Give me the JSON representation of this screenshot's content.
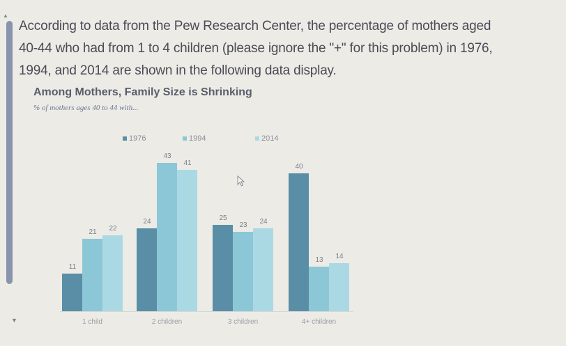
{
  "question": {
    "line1": "According to data from the Pew Research Center, the percentage of mothers aged",
    "line2": "40-44 who had from 1 to 4 children (please ignore the \"+\" for this problem) in 1976,",
    "line3": "1994, and 2014 are shown in the following data display."
  },
  "colors": {
    "1976": "#5a8ea6",
    "1994": "#8cc7d8",
    "2014": "#abd9e3"
  },
  "chart_data": {
    "type": "bar",
    "title": "Among Mothers, Family Size is Shrinking",
    "subtitle": "% of mothers ages 40 to 44 with...",
    "categories": [
      "1 child",
      "2 children",
      "3 children",
      "4+ children"
    ],
    "series": [
      {
        "name": "1976",
        "values": [
          11,
          24,
          25,
          40
        ]
      },
      {
        "name": "1994",
        "values": [
          21,
          43,
          23,
          13
        ]
      },
      {
        "name": "2014",
        "values": [
          22,
          41,
          24,
          14
        ]
      }
    ],
    "xlabel": "",
    "ylabel": "",
    "ylim": [
      0,
      45
    ],
    "grid": false,
    "legend_position": "top",
    "data_labels": true
  }
}
